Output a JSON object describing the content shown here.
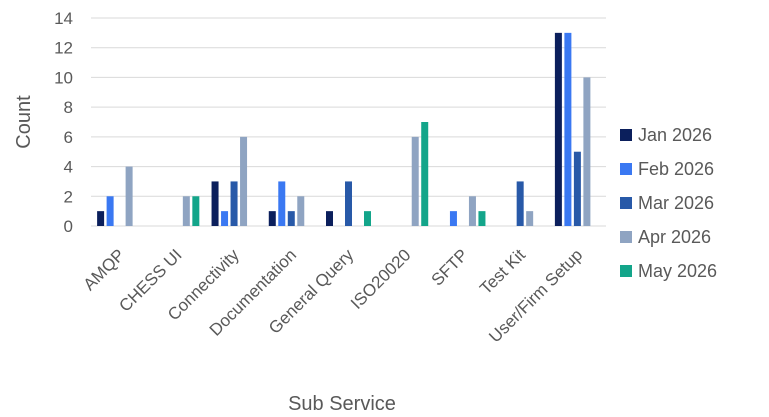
{
  "chart_data": {
    "type": "bar",
    "xlabel": "Sub Service",
    "ylabel": "Count",
    "ylim": [
      0,
      14
    ],
    "yticks": [
      0,
      2,
      4,
      6,
      8,
      10,
      12,
      14
    ],
    "grid": true,
    "legend_position": "right",
    "categories": [
      "AMQP",
      "CHESS UI",
      "Connectivity",
      "Documentation",
      "General Query",
      "ISO20020",
      "SFTP",
      "Test Kit",
      "User/Firm Setup"
    ],
    "series": [
      {
        "name": "Jan 2026",
        "color": "#0b1f5c",
        "values": [
          1,
          0,
          3,
          1,
          1,
          0,
          0,
          0,
          13
        ]
      },
      {
        "name": "Feb 2026",
        "color": "#3a78f2",
        "values": [
          2,
          0,
          1,
          3,
          0,
          0,
          1,
          0,
          13
        ]
      },
      {
        "name": "Mar 2026",
        "color": "#2859a8",
        "values": [
          0,
          0,
          3,
          1,
          3,
          0,
          0,
          3,
          5
        ]
      },
      {
        "name": "Apr 2026",
        "color": "#8fa4c2",
        "values": [
          4,
          2,
          6,
          2,
          0,
          6,
          2,
          1,
          10
        ]
      },
      {
        "name": "May 2026",
        "color": "#13a58a",
        "values": [
          0,
          2,
          0,
          0,
          1,
          7,
          1,
          0,
          0
        ]
      }
    ]
  }
}
